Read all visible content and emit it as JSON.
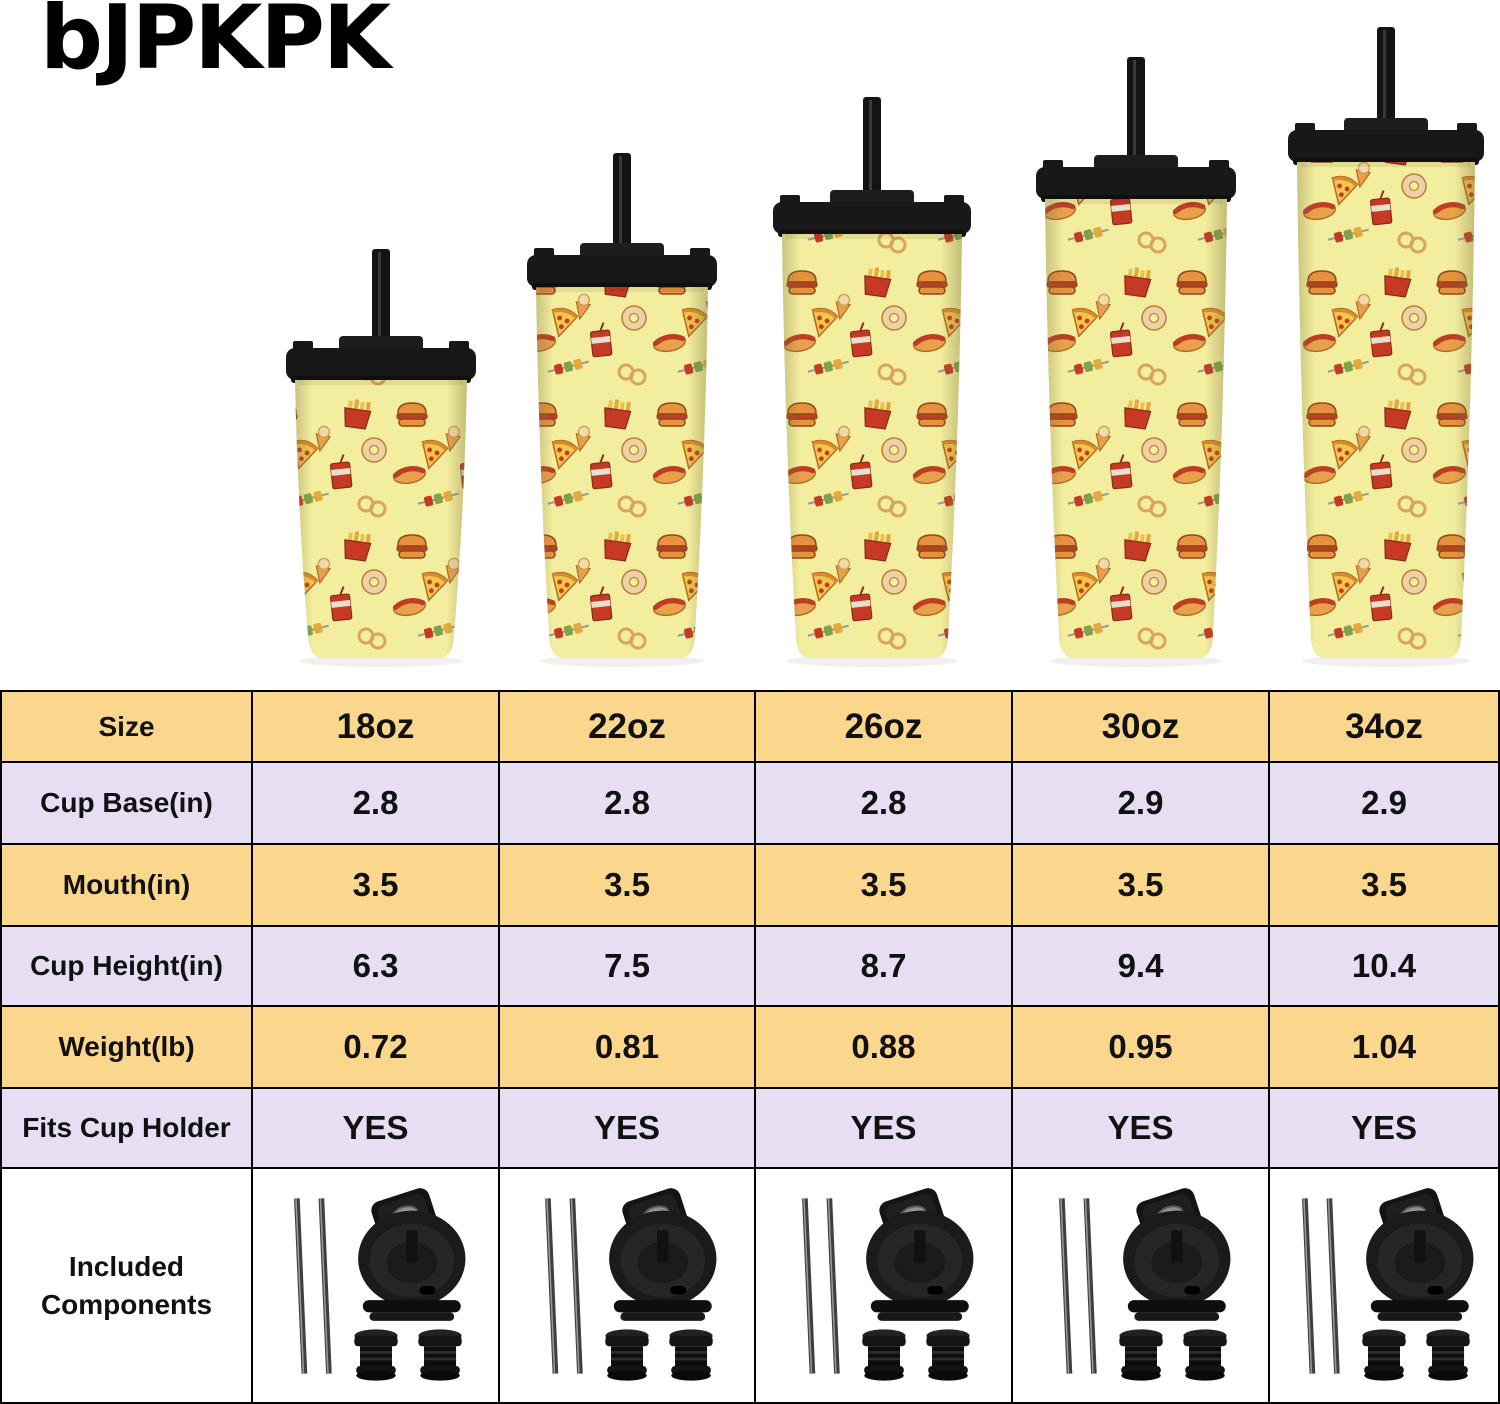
{
  "brand": {
    "logo_text": "bJPKPK"
  },
  "hero": {
    "tumbler_sizes": [
      "18oz",
      "22oz",
      "26oz",
      "30oz",
      "34oz"
    ],
    "pattern_icons": [
      "burger-icon",
      "fries-icon",
      "donut-icon",
      "pizza-icon",
      "soda-icon",
      "hotdog-icon",
      "skewer-icon",
      "pretzel-icon",
      "ice-cream-icon"
    ]
  },
  "table": {
    "rows": [
      {
        "label": "Size",
        "values": [
          "18oz",
          "22oz",
          "26oz",
          "30oz",
          "34oz"
        ]
      },
      {
        "label": "Cup Base(in)",
        "values": [
          "2.8",
          "2.8",
          "2.8",
          "2.9",
          "2.9"
        ]
      },
      {
        "label": "Mouth(in)",
        "values": [
          "3.5",
          "3.5",
          "3.5",
          "3.5",
          "3.5"
        ]
      },
      {
        "label": "Cup Height(in)",
        "values": [
          "6.3",
          "7.5",
          "8.7",
          "9.4",
          "10.4"
        ]
      },
      {
        "label": "Weight(lb)",
        "values": [
          "0.72",
          "0.81",
          "0.88",
          "0.95",
          "1.04"
        ]
      },
      {
        "label": "Fits Cup Holder",
        "values": [
          "YES",
          "YES",
          "YES",
          "YES",
          "YES"
        ]
      }
    ],
    "components_row": {
      "label_lines": [
        "Included",
        "Components"
      ],
      "item_icons": [
        "straws-icon",
        "flip-lid-icon",
        "stoppers-icon"
      ]
    }
  },
  "colors": {
    "row_yellow": "#FBD78E",
    "row_lavender": "#E7DEF4",
    "row_white": "#FFFFFF",
    "table_border": "#000000",
    "text": "#111111",
    "cup_body_yellow": "#F3ED9E",
    "lid_black": "#181818"
  }
}
